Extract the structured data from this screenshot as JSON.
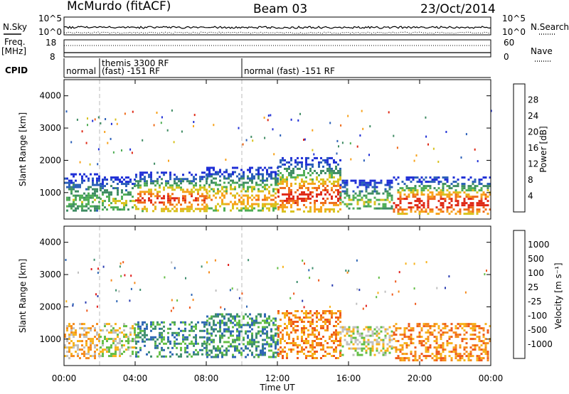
{
  "header": {
    "station": "McMurdo (fitACF)",
    "beam": "Beam 03",
    "date": "23/Oct/2014"
  },
  "summary_panel": {
    "nsky_label": "N.Sky",
    "nsearch_label": "N.Search",
    "count_ticks": [
      "10^5",
      "10^0"
    ],
    "freq_label_1": "Freq.",
    "freq_label_2": "[MHz]",
    "freq_ticks": [
      "18",
      "8"
    ],
    "nave_label": "Nave",
    "nave_ticks": [
      "60",
      "0"
    ],
    "cpid_label": "CPID",
    "cpid_segments": [
      {
        "label": "normal",
        "label2": "",
        "start_hour": 0.0,
        "end_hour": 2.0
      },
      {
        "label": "themis 3300 RF",
        "label2": "(fast) -151 RF",
        "start_hour": 2.0,
        "end_hour": 10.0
      },
      {
        "label": "normal (fast) -151 RF",
        "label2": "",
        "start_hour": 10.0,
        "end_hour": 24.0
      }
    ]
  },
  "chart_data": [
    {
      "type": "heatmap",
      "title": "",
      "xlabel": "",
      "ylabel": "Slant Range [km]",
      "xlim": [
        0,
        24
      ],
      "ylim": [
        180,
        4500
      ],
      "x_ticks": [
        "00:00",
        "04:00",
        "08:00",
        "12:00",
        "16:00",
        "20:00",
        "00:00"
      ],
      "y_ticks": [
        1000,
        2000,
        3000,
        4000
      ],
      "colorbar": {
        "label": "Power [dB]",
        "ticks": [
          "28",
          "24",
          "20",
          "16",
          "12",
          "8",
          "4"
        ],
        "colors": [
          "#1f2fd6",
          "#2a5fb8",
          "#3f8c63",
          "#4fae55",
          "#d8c21e",
          "#f7a21b",
          "#ef6b1a",
          "#df2a17"
        ]
      },
      "scatter_bands": [
        {
          "start_hour": 0.0,
          "end_hour": 2.0,
          "low_km": 420,
          "high_km": 1600,
          "core_power_db": 12
        },
        {
          "start_hour": 2.0,
          "end_hour": 4.0,
          "low_km": 450,
          "high_km": 1500,
          "core_power_db": 14
        },
        {
          "start_hour": 4.0,
          "end_hour": 8.0,
          "low_km": 450,
          "high_km": 1650,
          "core_power_db": 26
        },
        {
          "start_hour": 8.0,
          "end_hour": 12.0,
          "low_km": 420,
          "high_km": 1800,
          "core_power_db": 20
        },
        {
          "start_hour": 12.0,
          "end_hour": 15.5,
          "low_km": 420,
          "high_km": 2100,
          "core_power_db": 28
        },
        {
          "start_hour": 15.5,
          "end_hour": 18.5,
          "low_km": 500,
          "high_km": 1400,
          "core_power_db": 14
        },
        {
          "start_hour": 18.5,
          "end_hour": 24.0,
          "low_km": 350,
          "high_km": 1500,
          "core_power_db": 30
        }
      ]
    },
    {
      "type": "heatmap",
      "title": "",
      "xlabel": "Time UT",
      "ylabel": "Slant Range [km]",
      "xlim": [
        0,
        24
      ],
      "ylim": [
        180,
        4500
      ],
      "x_ticks": [
        "00:00",
        "04:00",
        "08:00",
        "12:00",
        "16:00",
        "20:00",
        "00:00"
      ],
      "y_ticks": [
        1000,
        2000,
        3000,
        4000
      ],
      "colorbar": {
        "label": "Velocity [m s⁻¹]",
        "ticks": [
          "1000",
          "500",
          "100",
          "25",
          "-25",
          "-100",
          "-500",
          "-1000"
        ],
        "colors": [
          "#2a3db1",
          "#2f67b5",
          "#3f8f6e",
          "#63be45",
          "#bfbfbf",
          "#f7b21b",
          "#f58a1c",
          "#ee5a1c",
          "#e11f1c"
        ]
      },
      "scatter_bands": [
        {
          "start_hour": 0.0,
          "end_hour": 2.0,
          "low_km": 420,
          "high_km": 1500,
          "core_velocity": -100
        },
        {
          "start_hour": 2.0,
          "end_hour": 4.0,
          "low_km": 450,
          "high_km": 1500,
          "core_velocity": 25
        },
        {
          "start_hour": 4.0,
          "end_hour": 8.0,
          "low_km": 450,
          "high_km": 1550,
          "core_velocity": 100
        },
        {
          "start_hour": 8.0,
          "end_hour": 12.0,
          "low_km": 420,
          "high_km": 1800,
          "core_velocity": 100
        },
        {
          "start_hour": 12.0,
          "end_hour": 15.5,
          "low_km": 420,
          "high_km": 1900,
          "core_velocity": -500
        },
        {
          "start_hour": 15.5,
          "end_hour": 18.5,
          "low_km": 500,
          "high_km": 1400,
          "core_velocity": 25
        },
        {
          "start_hour": 18.5,
          "end_hour": 24.0,
          "low_km": 350,
          "high_km": 1500,
          "core_velocity": -500
        }
      ]
    }
  ]
}
